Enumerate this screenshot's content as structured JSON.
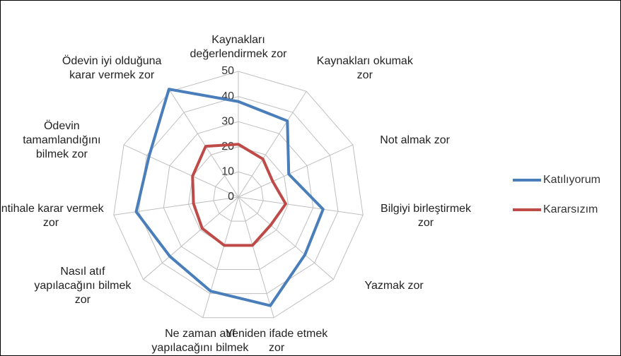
{
  "chart_data": {
    "type": "radar",
    "categories": [
      "Kaynakları değerlendirmek zor",
      "Kaynakları okumak zor",
      "Not almak zor",
      "Bilgiyi birleştirmek zor",
      "Yazmak zor",
      "Yeniden ifade etmek zor",
      "Ne zaman atıf yapılacağını bilmek zor",
      "Nasıl atıf yapılacağını bilmek zor",
      "İntihale karar vermek zor",
      "Ödevin tamamlandığını bilmek zor",
      "Ödevin iyi olduğuna karar vermek zor"
    ],
    "series": [
      {
        "name": "Katılıyorum",
        "color": "#4a7ebb",
        "values": [
          38,
          36,
          22,
          34,
          35,
          45,
          39,
          36,
          41,
          39,
          51
        ]
      },
      {
        "name": "Kararsızım",
        "color": "#be4b48",
        "values": [
          21,
          18,
          15,
          19,
          17,
          20,
          20,
          19,
          18,
          20,
          24
        ]
      }
    ],
    "ylim": [
      0,
      50
    ],
    "yticks": [
      0,
      10,
      20,
      30,
      40,
      50
    ],
    "grid": true,
    "legend": "right"
  }
}
